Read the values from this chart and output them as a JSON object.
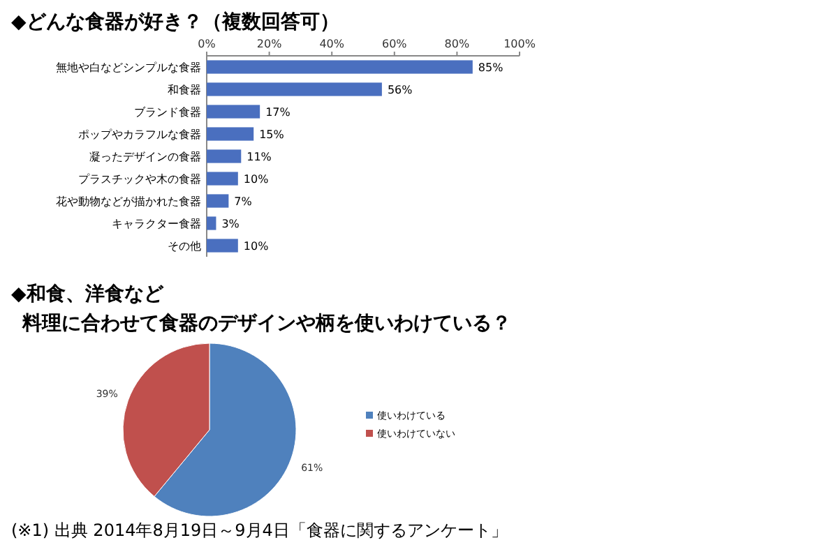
{
  "chart_data": [
    {
      "type": "bar",
      "orientation": "horizontal",
      "title": "◆どんな食器が好き？（複数回答可）",
      "categories": [
        "無地や白などシンプルな食器",
        "和食器",
        "ブランド食器",
        "ポップやカラフルな食器",
        "凝ったデザインの食器",
        "プラスチックや木の食器",
        "花や動物などが描かれた食器",
        "キャラクター食器",
        "その他"
      ],
      "values": [
        85,
        56,
        17,
        15,
        11,
        10,
        7,
        3,
        10
      ],
      "value_labels": [
        "85%",
        "56%",
        "17%",
        "15%",
        "11%",
        "10%",
        "7%",
        "3%",
        "10%"
      ],
      "color": "#4a6fbf",
      "xlim": [
        0,
        100
      ],
      "xticks": [
        {
          "value": 0,
          "label": "0%"
        },
        {
          "value": 20,
          "label": "20%"
        },
        {
          "value": 40,
          "label": "40%"
        },
        {
          "value": 60,
          "label": "60%"
        },
        {
          "value": 80,
          "label": "80%"
        },
        {
          "value": 100,
          "label": "100%"
        }
      ],
      "grid": false
    },
    {
      "type": "pie",
      "title": "◆和食、洋食など",
      "subtitle": "料理に合わせて食器のデザインや柄を使いわけている？",
      "categories": [
        "使いわけている",
        "使いわけていない"
      ],
      "values": [
        61,
        39
      ],
      "value_labels": [
        "61%",
        "39%"
      ],
      "colors": [
        "#4f81bd",
        "#c0504d"
      ],
      "legend": "right",
      "annotations": [
        "(※1) 出典 2014年8月19日～9月4日「食器に関するアンケート」"
      ]
    }
  ]
}
